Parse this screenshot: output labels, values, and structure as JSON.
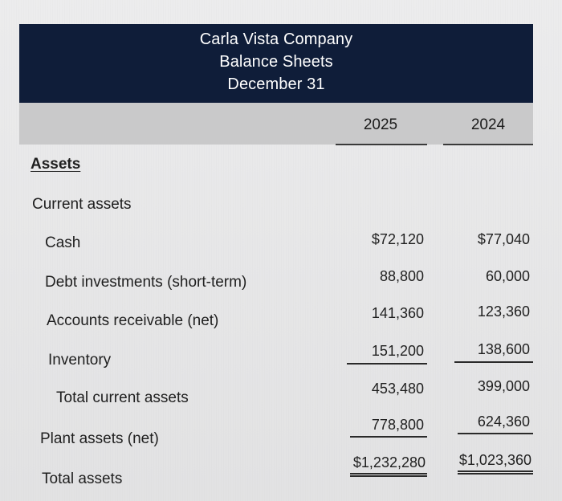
{
  "header": {
    "company": "Carla Vista Company",
    "statement": "Balance Sheets",
    "date": "December 31"
  },
  "columns": {
    "year1": "2025",
    "year2": "2024"
  },
  "assets": {
    "section_label": "Assets",
    "current_assets_label": "Current assets",
    "rows": [
      {
        "label": "Cash",
        "v2025": "$72,120",
        "v2024": "$77,040"
      },
      {
        "label": "Debt investments (short-term)",
        "v2025": "88,800",
        "v2024": "60,000"
      },
      {
        "label": "Accounts receivable (net)",
        "v2025": "141,360",
        "v2024": "123,360"
      },
      {
        "label": "Inventory",
        "v2025": "151,200",
        "v2024": "138,600"
      },
      {
        "label": "Total current assets",
        "v2025": "453,480",
        "v2024": "399,000"
      },
      {
        "label": "Plant assets (net)",
        "v2025": "778,800",
        "v2024": "624,360"
      },
      {
        "label": "Total assets",
        "v2025": "$1,232,280",
        "v2024": "$1,023,360"
      }
    ]
  }
}
